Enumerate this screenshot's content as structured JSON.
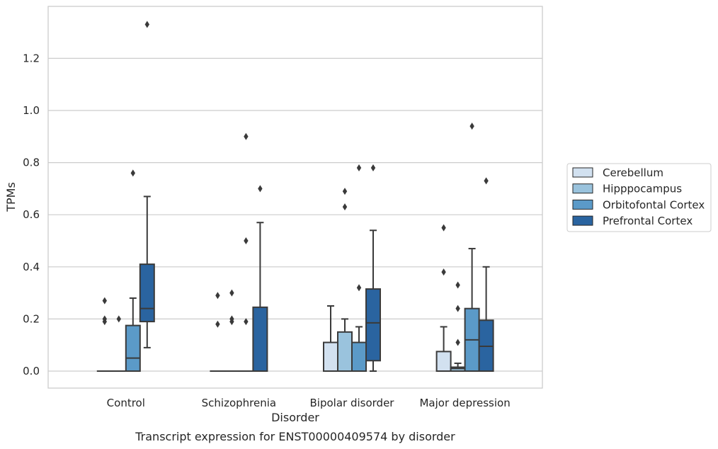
{
  "chart_data": {
    "type": "box",
    "xlabel": "Disorder",
    "ylabel": "TPMs",
    "caption": "Transcript expression for ENST00000409574 by disorder",
    "ylim": [
      -0.065,
      1.4
    ],
    "yticks": [
      "0.0",
      "0.2",
      "0.4",
      "0.6",
      "0.8",
      "1.0",
      "1.2"
    ],
    "grid": true,
    "legend_position": "right",
    "categories": [
      "Control",
      "Schizophrenia",
      "Bipolar disorder",
      "Major depression"
    ],
    "series": [
      {
        "name": "Cerebellum",
        "color": "#d2e1f0",
        "boxes": [
          {
            "q1": 0,
            "median": 0,
            "q3": 0,
            "whislo": 0,
            "whishi": 0,
            "fliers": [
              0.27,
              0.2,
              0.19
            ]
          },
          {
            "q1": 0,
            "median": 0,
            "q3": 0,
            "whislo": 0,
            "whishi": 0,
            "fliers": [
              0.29,
              0.18
            ]
          },
          {
            "q1": 0,
            "median": 0,
            "q3": 0.11,
            "whislo": 0,
            "whishi": 0.25,
            "fliers": []
          },
          {
            "q1": 0,
            "median": 0,
            "q3": 0.075,
            "whislo": 0,
            "whishi": 0.17,
            "fliers": [
              0.55,
              0.38
            ]
          }
        ]
      },
      {
        "name": "Hipppocampus",
        "color": "#9ac3dd",
        "boxes": [
          {
            "q1": 0,
            "median": 0,
            "q3": 0,
            "whislo": 0,
            "whishi": 0,
            "fliers": [
              0.2
            ]
          },
          {
            "q1": 0,
            "median": 0,
            "q3": 0,
            "whislo": 0,
            "whishi": 0,
            "fliers": [
              0.3,
              0.2,
              0.19
            ]
          },
          {
            "q1": 0,
            "median": 0,
            "q3": 0.15,
            "whislo": 0,
            "whishi": 0.2,
            "fliers": [
              0.69,
              0.63
            ]
          },
          {
            "q1": 0,
            "median": 0.01,
            "q3": 0.015,
            "whislo": 0,
            "whishi": 0.03,
            "fliers": [
              0.33,
              0.24,
              0.11
            ]
          }
        ]
      },
      {
        "name": "Orbitofontal Cortex",
        "color": "#5b9ac8",
        "boxes": [
          {
            "q1": 0,
            "median": 0.05,
            "q3": 0.175,
            "whislo": 0,
            "whishi": 0.28,
            "fliers": [
              0.76
            ]
          },
          {
            "q1": 0,
            "median": 0,
            "q3": 0,
            "whislo": 0,
            "whishi": 0,
            "fliers": [
              0.9,
              0.5,
              0.19
            ]
          },
          {
            "q1": 0,
            "median": 0,
            "q3": 0.11,
            "whislo": 0,
            "whishi": 0.17,
            "fliers": [
              0.78,
              0.32
            ]
          },
          {
            "q1": 0,
            "median": 0.12,
            "q3": 0.24,
            "whislo": 0,
            "whishi": 0.47,
            "fliers": [
              0.94
            ]
          }
        ]
      },
      {
        "name": "Prefrontal Cortex",
        "color": "#2a64a0",
        "boxes": [
          {
            "q1": 0.19,
            "median": 0.24,
            "q3": 0.41,
            "whislo": 0.09,
            "whishi": 0.67,
            "fliers": [
              1.33
            ]
          },
          {
            "q1": 0,
            "median": 0,
            "q3": 0.245,
            "whislo": 0,
            "whishi": 0.57,
            "fliers": [
              0.7
            ]
          },
          {
            "q1": 0.04,
            "median": 0.185,
            "q3": 0.315,
            "whislo": 0,
            "whishi": 0.54,
            "fliers": [
              0.78
            ]
          },
          {
            "q1": 0,
            "median": 0.095,
            "q3": 0.195,
            "whislo": 0,
            "whishi": 0.4,
            "fliers": [
              0.73
            ]
          }
        ]
      }
    ]
  }
}
